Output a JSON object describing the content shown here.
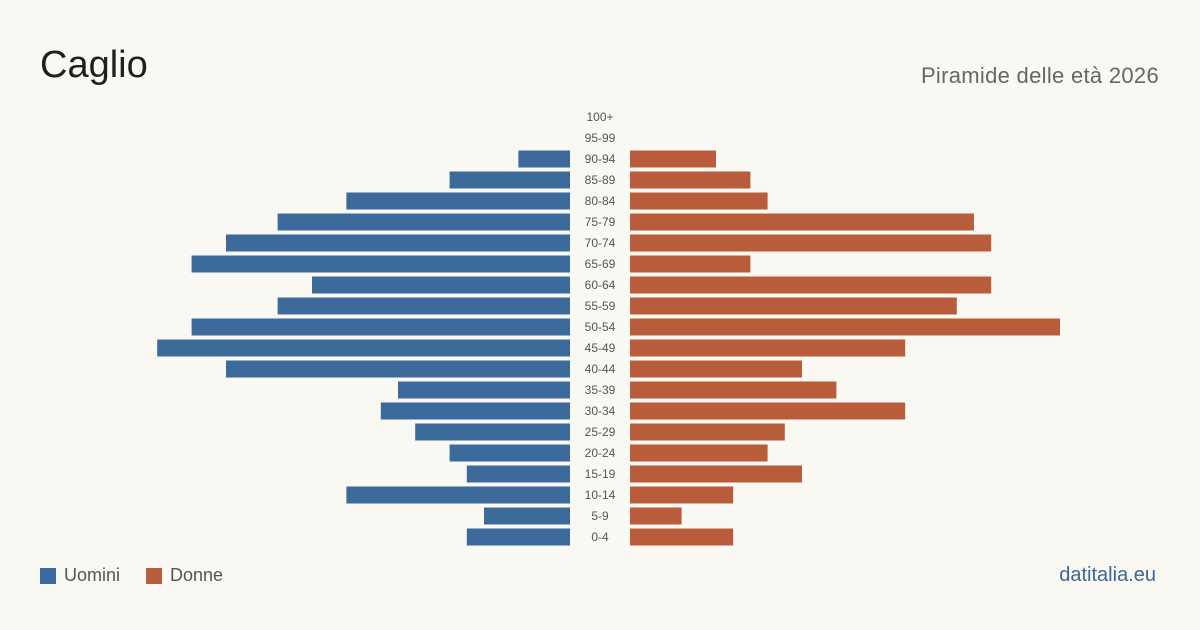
{
  "header": {
    "title": "Caglio",
    "subtitle": "Piramide delle età 2026"
  },
  "legend": {
    "men": "Uomini",
    "women": "Donne"
  },
  "source": "datitalia.eu",
  "colors": {
    "men": "#3b6a9b",
    "women": "#b85c3c",
    "background": "#faf8f3"
  },
  "chart_data": {
    "type": "bar",
    "orientation": "horizontal-pyramid",
    "categories": [
      "100+",
      "95-99",
      "90-94",
      "85-89",
      "80-84",
      "75-79",
      "70-74",
      "65-69",
      "60-64",
      "55-59",
      "50-54",
      "45-49",
      "40-44",
      "35-39",
      "30-34",
      "25-29",
      "20-24",
      "15-19",
      "10-14",
      "5-9",
      "0-4"
    ],
    "series": [
      {
        "name": "Uomini",
        "values": [
          0,
          0,
          3,
          7,
          13,
          17,
          20,
          22,
          15,
          17,
          22,
          24,
          20,
          10,
          11,
          9,
          7,
          6,
          13,
          5,
          6
        ]
      },
      {
        "name": "Donne",
        "values": [
          0,
          0,
          5,
          7,
          8,
          20,
          21,
          7,
          21,
          19,
          25,
          16,
          10,
          12,
          16,
          9,
          8,
          10,
          6,
          3,
          6
        ]
      }
    ],
    "xlabel": "",
    "ylabel": "",
    "legend_position": "bottom-left",
    "grid": false
  }
}
